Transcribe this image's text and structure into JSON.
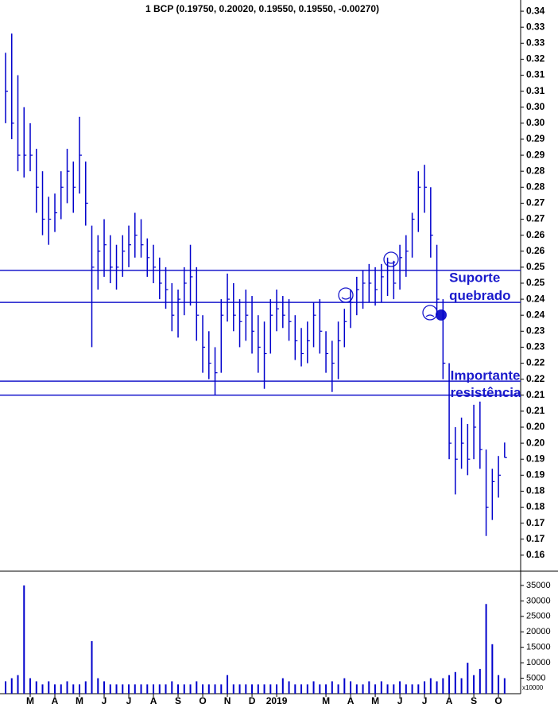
{
  "chart_data": {
    "type": "ohlc",
    "title": "1 BCP (0.19750, 0.20020, 0.19550, 0.19550, -0.00270)",
    "color": "#0000cc",
    "x": [
      0,
      0.25,
      0.5,
      0.75,
      1,
      1.25,
      1.5,
      1.75,
      2,
      2.25,
      2.5,
      2.75,
      3,
      3.25,
      3.5,
      3.75,
      4,
      4.25,
      4.5,
      4.75,
      5,
      5.25,
      5.5,
      5.75,
      6,
      6.25,
      6.5,
      6.75,
      7,
      7.25,
      7.5,
      7.75,
      8,
      8.25,
      8.5,
      8.75,
      9,
      9.25,
      9.5,
      9.75,
      10,
      10.25,
      10.5,
      10.75,
      11,
      11.25,
      11.5,
      11.75,
      12,
      12.25,
      12.5,
      12.75,
      13,
      13.25,
      13.5,
      13.75,
      14,
      14.25,
      14.5,
      14.75,
      15,
      15.25,
      15.5,
      15.75,
      16,
      16.25,
      16.5,
      16.75,
      17,
      17.25,
      17.5,
      17.75,
      18,
      18.25,
      18.5,
      18.75,
      19,
      19.25,
      19.5,
      19.75,
      20,
      20.25
    ],
    "high": [
      0.322,
      0.328,
      0.315,
      0.305,
      0.3,
      0.292,
      0.285,
      0.277,
      0.278,
      0.285,
      0.292,
      0.288,
      0.302,
      0.288,
      0.268,
      0.265,
      0.27,
      0.265,
      0.262,
      0.265,
      0.268,
      0.272,
      0.27,
      0.264,
      0.262,
      0.258,
      0.255,
      0.25,
      0.248,
      0.255,
      0.262,
      0.255,
      0.24,
      0.235,
      0.23,
      0.245,
      0.253,
      0.25,
      0.245,
      0.248,
      0.246,
      0.24,
      0.238,
      0.245,
      0.248,
      0.246,
      0.245,
      0.24,
      0.236,
      0.238,
      0.244,
      0.245,
      0.235,
      0.232,
      0.238,
      0.242,
      0.248,
      0.252,
      0.254,
      0.256,
      0.255,
      0.256,
      0.258,
      0.257,
      0.262,
      0.265,
      0.272,
      0.285,
      0.287,
      0.28,
      0.262,
      0.245,
      0.225,
      0.205,
      0.208,
      0.206,
      0.212,
      0.213,
      0.198,
      0.192,
      0.196,
      0.2002
    ],
    "low": [
      0.3,
      0.295,
      0.285,
      0.283,
      0.285,
      0.272,
      0.265,
      0.262,
      0.266,
      0.27,
      0.275,
      0.272,
      0.278,
      0.268,
      0.23,
      0.248,
      0.252,
      0.25,
      0.248,
      0.252,
      0.255,
      0.258,
      0.258,
      0.252,
      0.25,
      0.245,
      0.242,
      0.235,
      0.233,
      0.24,
      0.243,
      0.232,
      0.222,
      0.22,
      0.215,
      0.222,
      0.238,
      0.235,
      0.23,
      0.232,
      0.228,
      0.222,
      0.217,
      0.228,
      0.235,
      0.236,
      0.232,
      0.226,
      0.224,
      0.225,
      0.23,
      0.228,
      0.222,
      0.216,
      0.22,
      0.23,
      0.236,
      0.24,
      0.242,
      0.244,
      0.243,
      0.244,
      0.246,
      0.245,
      0.248,
      0.252,
      0.258,
      0.266,
      0.272,
      0.258,
      0.24,
      0.22,
      0.195,
      0.184,
      0.192,
      0.19,
      0.195,
      0.192,
      0.171,
      0.176,
      0.183,
      0.1955
    ],
    "close": [
      0.31,
      0.3,
      0.29,
      0.29,
      0.29,
      0.28,
      0.27,
      0.27,
      0.272,
      0.28,
      0.285,
      0.28,
      0.29,
      0.275,
      0.255,
      0.26,
      0.262,
      0.255,
      0.255,
      0.26,
      0.262,
      0.265,
      0.262,
      0.258,
      0.255,
      0.25,
      0.248,
      0.24,
      0.245,
      0.25,
      0.252,
      0.24,
      0.23,
      0.225,
      0.222,
      0.24,
      0.245,
      0.24,
      0.238,
      0.24,
      0.235,
      0.23,
      0.228,
      0.24,
      0.242,
      0.24,
      0.238,
      0.232,
      0.228,
      0.232,
      0.24,
      0.235,
      0.228,
      0.225,
      0.232,
      0.238,
      0.244,
      0.248,
      0.25,
      0.25,
      0.248,
      0.252,
      0.254,
      0.25,
      0.258,
      0.26,
      0.27,
      0.28,
      0.28,
      0.265,
      0.245,
      0.225,
      0.2,
      0.195,
      0.2,
      0.195,
      0.205,
      0.198,
      0.18,
      0.188,
      0.19,
      0.1955
    ],
    "volume": [
      4000,
      5000,
      6000,
      35000,
      5000,
      4000,
      3000,
      4000,
      3000,
      3000,
      4000,
      3000,
      3000,
      4000,
      17000,
      5000,
      4000,
      3000,
      3000,
      3000,
      3000,
      3000,
      3000,
      3000,
      3000,
      3000,
      3000,
      4000,
      3000,
      3000,
      3000,
      4000,
      3000,
      3000,
      3000,
      3000,
      6000,
      3000,
      3000,
      3000,
      3000,
      3000,
      3000,
      3000,
      3000,
      5000,
      4000,
      3000,
      3000,
      3000,
      4000,
      3000,
      3000,
      4000,
      3000,
      5000,
      4000,
      3000,
      3000,
      4000,
      3000,
      4000,
      3000,
      3000,
      4000,
      3000,
      3000,
      3000,
      4000,
      5000,
      4000,
      5000,
      6000,
      7000,
      5000,
      10000,
      6000,
      8000,
      29000,
      16000,
      6000,
      5000
    ],
    "ylim": [
      0.16,
      0.3385
    ],
    "yticks": [
      {
        "value": 0.335,
        "label": "0.34"
      },
      {
        "value": 0.33,
        "label": "0.33"
      },
      {
        "value": 0.325,
        "label": "0.33"
      },
      {
        "value": 0.32,
        "label": "0.32"
      },
      {
        "value": 0.315,
        "label": "0.31"
      },
      {
        "value": 0.31,
        "label": "0.31"
      },
      {
        "value": 0.305,
        "label": "0.30"
      },
      {
        "value": 0.3,
        "label": "0.30"
      },
      {
        "value": 0.295,
        "label": "0.29"
      },
      {
        "value": 0.29,
        "label": "0.29"
      },
      {
        "value": 0.285,
        "label": "0.28"
      },
      {
        "value": 0.28,
        "label": "0.28"
      },
      {
        "value": 0.275,
        "label": "0.27"
      },
      {
        "value": 0.27,
        "label": "0.27"
      },
      {
        "value": 0.265,
        "label": "0.26"
      },
      {
        "value": 0.26,
        "label": "0.26"
      },
      {
        "value": 0.255,
        "label": "0.25"
      },
      {
        "value": 0.25,
        "label": "0.25"
      },
      {
        "value": 0.245,
        "label": "0.24"
      },
      {
        "value": 0.24,
        "label": "0.24"
      },
      {
        "value": 0.235,
        "label": "0.23"
      },
      {
        "value": 0.23,
        "label": "0.23"
      },
      {
        "value": 0.225,
        "label": "0.22"
      },
      {
        "value": 0.22,
        "label": "0.22"
      },
      {
        "value": 0.215,
        "label": "0.21"
      },
      {
        "value": 0.21,
        "label": "0.21"
      },
      {
        "value": 0.205,
        "label": "0.20"
      },
      {
        "value": 0.2,
        "label": "0.20"
      },
      {
        "value": 0.195,
        "label": "0.19"
      },
      {
        "value": 0.19,
        "label": "0.19"
      },
      {
        "value": 0.185,
        "label": "0.18"
      },
      {
        "value": 0.18,
        "label": "0.18"
      },
      {
        "value": 0.175,
        "label": "0.17"
      },
      {
        "value": 0.17,
        "label": "0.17"
      },
      {
        "value": 0.165,
        "label": "0.16"
      }
    ],
    "volume_ylim": [
      0,
      39100
    ],
    "volume_ticks": [
      5000,
      10000,
      15000,
      20000,
      25000,
      30000,
      35000
    ],
    "volume_unit": "x10000",
    "xlim": [
      -0.226,
      20.9
    ],
    "xticks": [
      {
        "value": 1,
        "label": "M"
      },
      {
        "value": 2,
        "label": "A"
      },
      {
        "value": 3,
        "label": "M"
      },
      {
        "value": 4,
        "label": "J"
      },
      {
        "value": 5,
        "label": "J"
      },
      {
        "value": 6,
        "label": "A"
      },
      {
        "value": 7,
        "label": "S"
      },
      {
        "value": 8,
        "label": "O"
      },
      {
        "value": 9,
        "label": "N"
      },
      {
        "value": 10,
        "label": "D"
      },
      {
        "value": 11,
        "label": "2019"
      },
      {
        "value": 13,
        "label": "M"
      },
      {
        "value": 14,
        "label": "A"
      },
      {
        "value": 15,
        "label": "M"
      },
      {
        "value": 16,
        "label": "J"
      },
      {
        "value": 17,
        "label": "J"
      },
      {
        "value": 18,
        "label": "A"
      },
      {
        "value": 19,
        "label": "S"
      },
      {
        "value": 20,
        "label": "O"
      }
    ],
    "hlines": [
      0.254,
      0.244,
      0.2194,
      0.215
    ],
    "annotations": [
      {
        "text": "Suporte",
        "x": 18,
        "y": 0.2515
      },
      {
        "text": "quebrado",
        "x": 18,
        "y": 0.2459
      },
      {
        "text": "Importante",
        "x": 18.05,
        "y": 0.2209
      },
      {
        "text": "resistência",
        "x": 18.05,
        "y": 0.2156
      }
    ]
  }
}
